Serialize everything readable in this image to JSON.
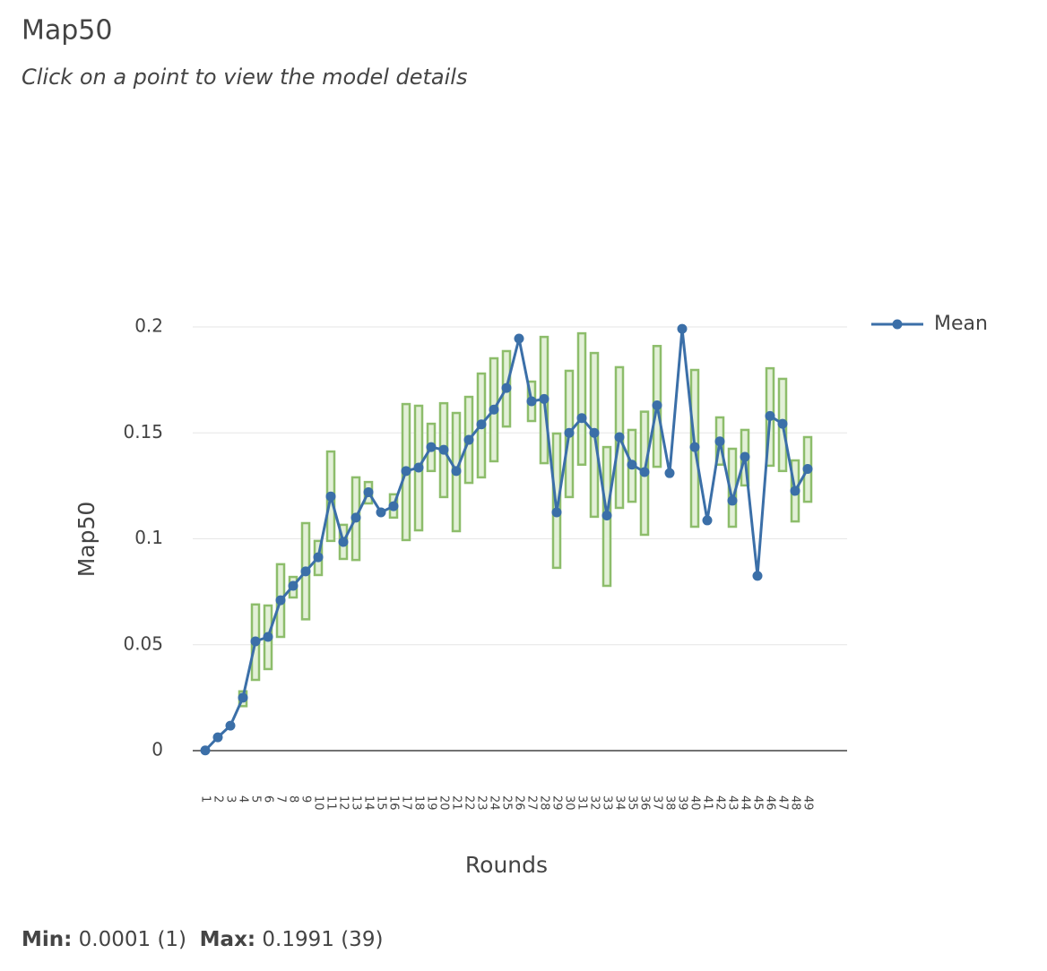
{
  "chart_data": {
    "type": "line",
    "title": "Map50",
    "subtitle": "Click on a point to view the model details",
    "x_label": "Rounds",
    "y_label": "Map50",
    "categories": [
      "1",
      "2",
      "3",
      "4",
      "5",
      "6",
      "7",
      "8",
      "9",
      "10",
      "11",
      "12",
      "13",
      "14",
      "15",
      "16",
      "17",
      "18",
      "19",
      "20",
      "21",
      "22",
      "23",
      "24",
      "25",
      "26",
      "27",
      "28",
      "29",
      "30",
      "31",
      "32",
      "33",
      "34",
      "35",
      "36",
      "37",
      "38",
      "39",
      "40",
      "41",
      "42",
      "43",
      "44",
      "45",
      "46",
      "47",
      "48",
      "49"
    ],
    "series": [
      {
        "name": "Mean",
        "color": "#3b6fa8",
        "values": [
          0.0001,
          0.0063,
          0.0118,
          0.025,
          0.0516,
          0.0537,
          0.071,
          0.0778,
          0.0846,
          0.0913,
          0.12,
          0.0985,
          0.11,
          0.122,
          0.1125,
          0.1154,
          0.132,
          0.1336,
          0.1433,
          0.142,
          0.132,
          0.1467,
          0.154,
          0.161,
          0.1712,
          0.1945,
          0.1649,
          0.166,
          0.1125,
          0.15,
          0.157,
          0.15,
          0.111,
          0.148,
          0.135,
          0.1315,
          0.163,
          0.131,
          0.1991,
          0.1433,
          0.1087,
          0.146,
          0.118,
          0.1387,
          0.0825,
          0.158,
          0.1543,
          0.1226,
          0.133
        ]
      }
    ],
    "ranges": [
      null,
      null,
      null,
      [
        0.021,
        0.028
      ],
      [
        0.0334,
        0.069
      ],
      [
        0.0385,
        0.0685
      ],
      [
        0.0537,
        0.088
      ],
      [
        0.0723,
        0.082
      ],
      [
        0.062,
        0.1074
      ],
      [
        0.0829,
        0.099
      ],
      [
        0.099,
        0.1412
      ],
      [
        0.0905,
        0.1066
      ],
      [
        0.09,
        0.129
      ],
      [
        0.1167,
        0.1268
      ],
      null,
      [
        0.11,
        0.121
      ],
      [
        0.0994,
        0.1636
      ],
      [
        0.104,
        0.1628
      ],
      [
        0.132,
        0.1543
      ],
      [
        0.1197,
        0.164
      ],
      [
        0.1036,
        0.1594
      ],
      [
        0.1264,
        0.167
      ],
      [
        0.129,
        0.178
      ],
      [
        0.1366,
        0.1852
      ],
      [
        0.153,
        0.1886
      ],
      null,
      [
        0.1556,
        0.1742
      ],
      [
        0.1357,
        0.1953
      ],
      [
        0.0863,
        0.1497
      ],
      [
        0.1197,
        0.1793
      ],
      [
        0.135,
        0.197
      ],
      [
        0.1104,
        0.1877
      ],
      [
        0.0778,
        0.1433
      ],
      [
        0.1146,
        0.181
      ],
      [
        0.1175,
        0.1514
      ],
      [
        0.1019,
        0.16
      ],
      [
        0.134,
        0.191
      ],
      null,
      null,
      [
        0.1057,
        0.1797
      ],
      null,
      [
        0.135,
        0.1573
      ],
      [
        0.1057,
        0.1425
      ],
      [
        0.1252,
        0.1514
      ],
      null,
      [
        0.1345,
        0.1805
      ],
      [
        0.132,
        0.1755
      ],
      [
        0.1082,
        0.137
      ],
      [
        0.1175,
        0.148
      ]
    ],
    "range_color": "#8dbd6b",
    "ylim": [
      0,
      0.2
    ],
    "yticks": [
      0,
      0.05,
      0.1,
      0.15,
      0.2
    ],
    "grid": true,
    "legend": "top-right"
  },
  "footer": {
    "min_label": "Min:",
    "min_value": "0.0001 (1)",
    "max_label": "Max:",
    "max_value": "0.1991 (39)"
  }
}
